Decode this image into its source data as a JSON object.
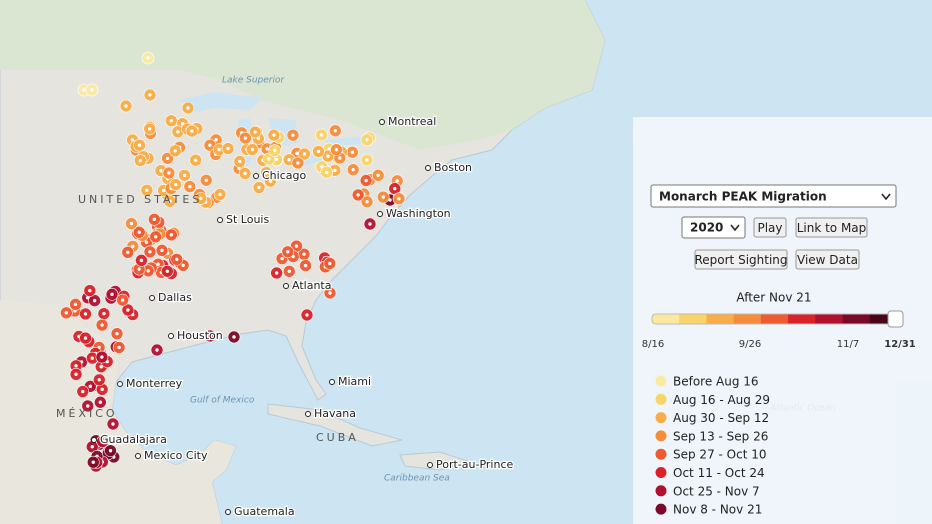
{
  "map_labels": {
    "cities": [
      "Montreal",
      "Boston",
      "Washington",
      "Atlanta",
      "Houston",
      "Dallas",
      "St Louis",
      "Chicago",
      "Miami",
      "Havana",
      "Monterrey",
      "Mexico City",
      "Guadalajara",
      "Port-au-Prince",
      "Guatemala"
    ],
    "regions": [
      "UNITED STATES",
      "MÉXICO",
      "CUBA"
    ],
    "water": [
      "Lake Superior",
      "Gulf of Mexico",
      "Atlantic Ocean",
      "Caribbean Sea"
    ]
  },
  "panel": {
    "dropdown": "Monarch PEAK Migration",
    "year": "2020",
    "buttons": [
      "Play",
      "Link to Map",
      "Report Sighting",
      "View Data"
    ],
    "slider_label": "After Nov 21",
    "slider_ticks": [
      "8/16",
      "9/26",
      "11/7",
      "12/31"
    ],
    "legend": [
      {
        "label": "Before Aug 16",
        "color": "#fbe9a2"
      },
      {
        "label": "Aug 16 - Aug 29",
        "color": "#f9d46a"
      },
      {
        "label": "Aug 30 - Sep 12",
        "color": "#f8ad48"
      },
      {
        "label": "Sep 13 - Sep 26",
        "color": "#f58c3b"
      },
      {
        "label": "Sep 27 - Oct 10",
        "color": "#ee5a32"
      },
      {
        "label": "Oct 11 - Oct 24",
        "color": "#d8232a"
      },
      {
        "label": "Oct 25 - Nov 7",
        "color": "#b1112f"
      },
      {
        "label": "Nov 8 - Nov 21",
        "color": "#7a0a28"
      }
    ]
  }
}
